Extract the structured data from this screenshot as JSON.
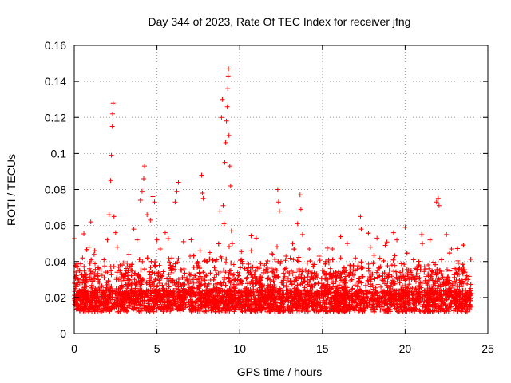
{
  "chart_data": {
    "type": "scatter",
    "title": "Day 344 of 2023, Rate Of TEC Index for receiver jfng",
    "xlabel": "GPS time / hours",
    "ylabel": "ROTI / TECUs",
    "xlim": [
      0,
      25
    ],
    "ylim": [
      0,
      0.16
    ],
    "x_ticks": [
      "0",
      "5",
      "10",
      "15",
      "20",
      "25"
    ],
    "y_ticks": [
      "0",
      "0.02",
      "0.04",
      "0.06",
      "0.08",
      "0.1",
      "0.12",
      "0.14",
      "0.16"
    ],
    "grid": true,
    "marker": "plus",
    "color": "#ff0000",
    "series": [
      {
        "points": [
          [
            0.1,
            0.018
          ],
          [
            0.3,
            0.035
          ],
          [
            0.5,
            0.042
          ],
          [
            0.7,
            0.028
          ],
          [
            0.9,
            0.048
          ],
          [
            1.0,
            0.062
          ],
          [
            1.2,
            0.044
          ],
          [
            1.5,
            0.036
          ],
          [
            1.8,
            0.041
          ],
          [
            2.0,
            0.052
          ],
          [
            2.1,
            0.066
          ],
          [
            2.2,
            0.085
          ],
          [
            2.25,
            0.099
          ],
          [
            2.3,
            0.115
          ],
          [
            2.32,
            0.122
          ],
          [
            2.35,
            0.128
          ],
          [
            2.4,
            0.065
          ],
          [
            2.5,
            0.056
          ],
          [
            2.6,
            0.048
          ],
          [
            2.9,
            0.038
          ],
          [
            3.3,
            0.044
          ],
          [
            3.6,
            0.058
          ],
          [
            3.8,
            0.052
          ],
          [
            4.0,
            0.074
          ],
          [
            4.1,
            0.079
          ],
          [
            4.2,
            0.086
          ],
          [
            4.25,
            0.093
          ],
          [
            4.4,
            0.066
          ],
          [
            4.6,
            0.063
          ],
          [
            4.75,
            0.076
          ],
          [
            4.85,
            0.073
          ],
          [
            5.0,
            0.052
          ],
          [
            5.2,
            0.047
          ],
          [
            5.5,
            0.056
          ],
          [
            5.9,
            0.042
          ],
          [
            6.1,
            0.073
          ],
          [
            6.2,
            0.079
          ],
          [
            6.3,
            0.084
          ],
          [
            6.6,
            0.051
          ],
          [
            7.0,
            0.043
          ],
          [
            7.4,
            0.039
          ],
          [
            7.6,
            0.046
          ],
          [
            7.7,
            0.088
          ],
          [
            7.75,
            0.078
          ],
          [
            7.8,
            0.075
          ],
          [
            8.2,
            0.045
          ],
          [
            8.6,
            0.041
          ],
          [
            8.8,
            0.068
          ],
          [
            8.9,
            0.12
          ],
          [
            8.95,
            0.13
          ],
          [
            9.0,
            0.071
          ],
          [
            9.05,
            0.061
          ],
          [
            9.1,
            0.095
          ],
          [
            9.15,
            0.106
          ],
          [
            9.2,
            0.118
          ],
          [
            9.25,
            0.126
          ],
          [
            9.28,
            0.136
          ],
          [
            9.3,
            0.143
          ],
          [
            9.32,
            0.147
          ],
          [
            9.35,
            0.11
          ],
          [
            9.4,
            0.093
          ],
          [
            9.45,
            0.082
          ],
          [
            9.5,
            0.057
          ],
          [
            9.55,
            0.05
          ],
          [
            10.1,
            0.041
          ],
          [
            10.7,
            0.046
          ],
          [
            11.0,
            0.053
          ],
          [
            11.5,
            0.038
          ],
          [
            12.0,
            0.044
          ],
          [
            12.3,
            0.08
          ],
          [
            12.35,
            0.073
          ],
          [
            12.4,
            0.068
          ],
          [
            12.5,
            0.04
          ],
          [
            12.8,
            0.043
          ],
          [
            13.2,
            0.05
          ],
          [
            13.5,
            0.061
          ],
          [
            13.65,
            0.077
          ],
          [
            13.7,
            0.069
          ],
          [
            13.8,
            0.055
          ],
          [
            14.2,
            0.047
          ],
          [
            14.8,
            0.043
          ],
          [
            15.2,
            0.04
          ],
          [
            15.6,
            0.047
          ],
          [
            16.1,
            0.042
          ],
          [
            16.5,
            0.05
          ],
          [
            17.0,
            0.042
          ],
          [
            17.3,
            0.065
          ],
          [
            17.35,
            0.058
          ],
          [
            17.9,
            0.048
          ],
          [
            18.3,
            0.053
          ],
          [
            18.8,
            0.049
          ],
          [
            19.3,
            0.056
          ],
          [
            19.5,
            0.052
          ],
          [
            20.0,
            0.059
          ],
          [
            20.5,
            0.041
          ],
          [
            21.0,
            0.055
          ],
          [
            21.5,
            0.052
          ],
          [
            21.9,
            0.073
          ],
          [
            22.0,
            0.075
          ],
          [
            22.05,
            0.071
          ],
          [
            22.2,
            0.041
          ],
          [
            22.5,
            0.055
          ],
          [
            22.8,
            0.047
          ],
          [
            23.2,
            0.039
          ],
          [
            23.5,
            0.033
          ],
          [
            23.8,
            0.03
          ],
          [
            23.95,
            0.025
          ]
        ]
      }
    ]
  }
}
